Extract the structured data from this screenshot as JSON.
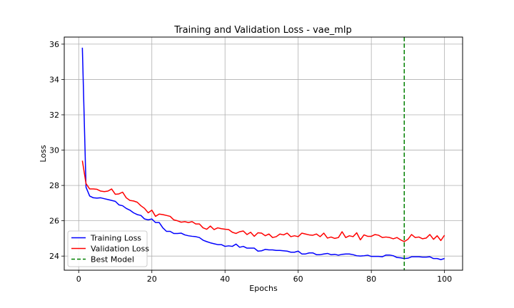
{
  "chart_data": {
    "type": "line",
    "title": "Training and Validation Loss - vae_mlp",
    "xlabel": "Epochs",
    "ylabel": "Loss",
    "xlim": [
      -3.95,
      104.95
    ],
    "ylim": [
      23.2,
      36.4
    ],
    "xticks": [
      0,
      20,
      40,
      60,
      80,
      100
    ],
    "yticks": [
      24,
      26,
      28,
      30,
      32,
      34,
      36
    ],
    "grid": true,
    "legend_position": "lower-left",
    "x": [
      1,
      2,
      3,
      4,
      5,
      6,
      7,
      8,
      9,
      10,
      11,
      12,
      13,
      14,
      15,
      16,
      17,
      18,
      19,
      20,
      21,
      22,
      23,
      24,
      25,
      26,
      27,
      28,
      29,
      30,
      31,
      32,
      33,
      34,
      35,
      36,
      37,
      38,
      39,
      40,
      41,
      42,
      43,
      44,
      45,
      46,
      47,
      48,
      49,
      50,
      51,
      52,
      53,
      54,
      55,
      56,
      57,
      58,
      59,
      60,
      61,
      62,
      63,
      64,
      65,
      66,
      67,
      68,
      69,
      70,
      71,
      72,
      73,
      74,
      75,
      76,
      77,
      78,
      79,
      80,
      81,
      82,
      83,
      84,
      85,
      86,
      87,
      88,
      89,
      90,
      91,
      92,
      93,
      94,
      95,
      96,
      97,
      98,
      99,
      100
    ],
    "series": [
      {
        "name": "Training Loss",
        "color": "#0000ff",
        "values": [
          35.8,
          27.9,
          27.4,
          27.3,
          27.28,
          27.3,
          27.25,
          27.2,
          27.15,
          27.1,
          26.9,
          26.85,
          26.7,
          26.6,
          26.45,
          26.35,
          26.3,
          26.1,
          26.05,
          26.1,
          25.9,
          25.9,
          25.6,
          25.4,
          25.4,
          25.28,
          25.28,
          25.3,
          25.2,
          25.15,
          25.12,
          25.1,
          25.05,
          24.9,
          24.82,
          24.75,
          24.7,
          24.65,
          24.65,
          24.55,
          24.58,
          24.55,
          24.68,
          24.5,
          24.55,
          24.45,
          24.45,
          24.45,
          24.28,
          24.3,
          24.38,
          24.35,
          24.35,
          24.32,
          24.32,
          24.3,
          24.28,
          24.22,
          24.22,
          24.28,
          24.12,
          24.12,
          24.18,
          24.18,
          24.08,
          24.08,
          24.12,
          24.15,
          24.08,
          24.1,
          24.05,
          24.1,
          24.12,
          24.12,
          24.08,
          24.02,
          24.0,
          24.02,
          24.05,
          23.98,
          23.98,
          23.98,
          23.96,
          24.06,
          24.06,
          24.02,
          23.92,
          23.9,
          23.86,
          23.88,
          23.96,
          23.96,
          23.96,
          23.94,
          23.94,
          23.96,
          23.86,
          23.86,
          23.8,
          23.86
        ]
      },
      {
        "name": "Validation Loss",
        "color": "#ff0000",
        "values": [
          29.4,
          28.1,
          27.8,
          27.8,
          27.78,
          27.68,
          27.65,
          27.68,
          27.8,
          27.5,
          27.52,
          27.62,
          27.3,
          27.15,
          27.12,
          27.05,
          26.85,
          26.7,
          26.45,
          26.6,
          26.25,
          26.38,
          26.35,
          26.3,
          26.25,
          26.05,
          26.0,
          25.92,
          25.95,
          25.9,
          25.95,
          25.82,
          25.82,
          25.6,
          25.52,
          25.7,
          25.5,
          25.6,
          25.55,
          25.52,
          25.5,
          25.35,
          25.28,
          25.38,
          25.42,
          25.22,
          25.35,
          25.12,
          25.32,
          25.3,
          25.15,
          25.25,
          25.05,
          25.1,
          25.25,
          25.2,
          25.3,
          25.1,
          25.15,
          25.1,
          25.3,
          25.25,
          25.2,
          25.18,
          25.25,
          25.1,
          25.3,
          25.02,
          25.08,
          25.0,
          25.05,
          25.38,
          25.05,
          25.15,
          25.1,
          25.32,
          24.92,
          25.2,
          25.12,
          25.12,
          25.22,
          25.18,
          25.05,
          25.08,
          25.05,
          24.98,
          25.05,
          24.92,
          24.82,
          24.95,
          25.22,
          25.05,
          25.08,
          24.98,
          25.02,
          25.22,
          24.95,
          25.15,
          24.88,
          25.18
        ]
      }
    ],
    "best_model": {
      "name": "Best Model",
      "color": "#008000",
      "x": 89
    }
  }
}
